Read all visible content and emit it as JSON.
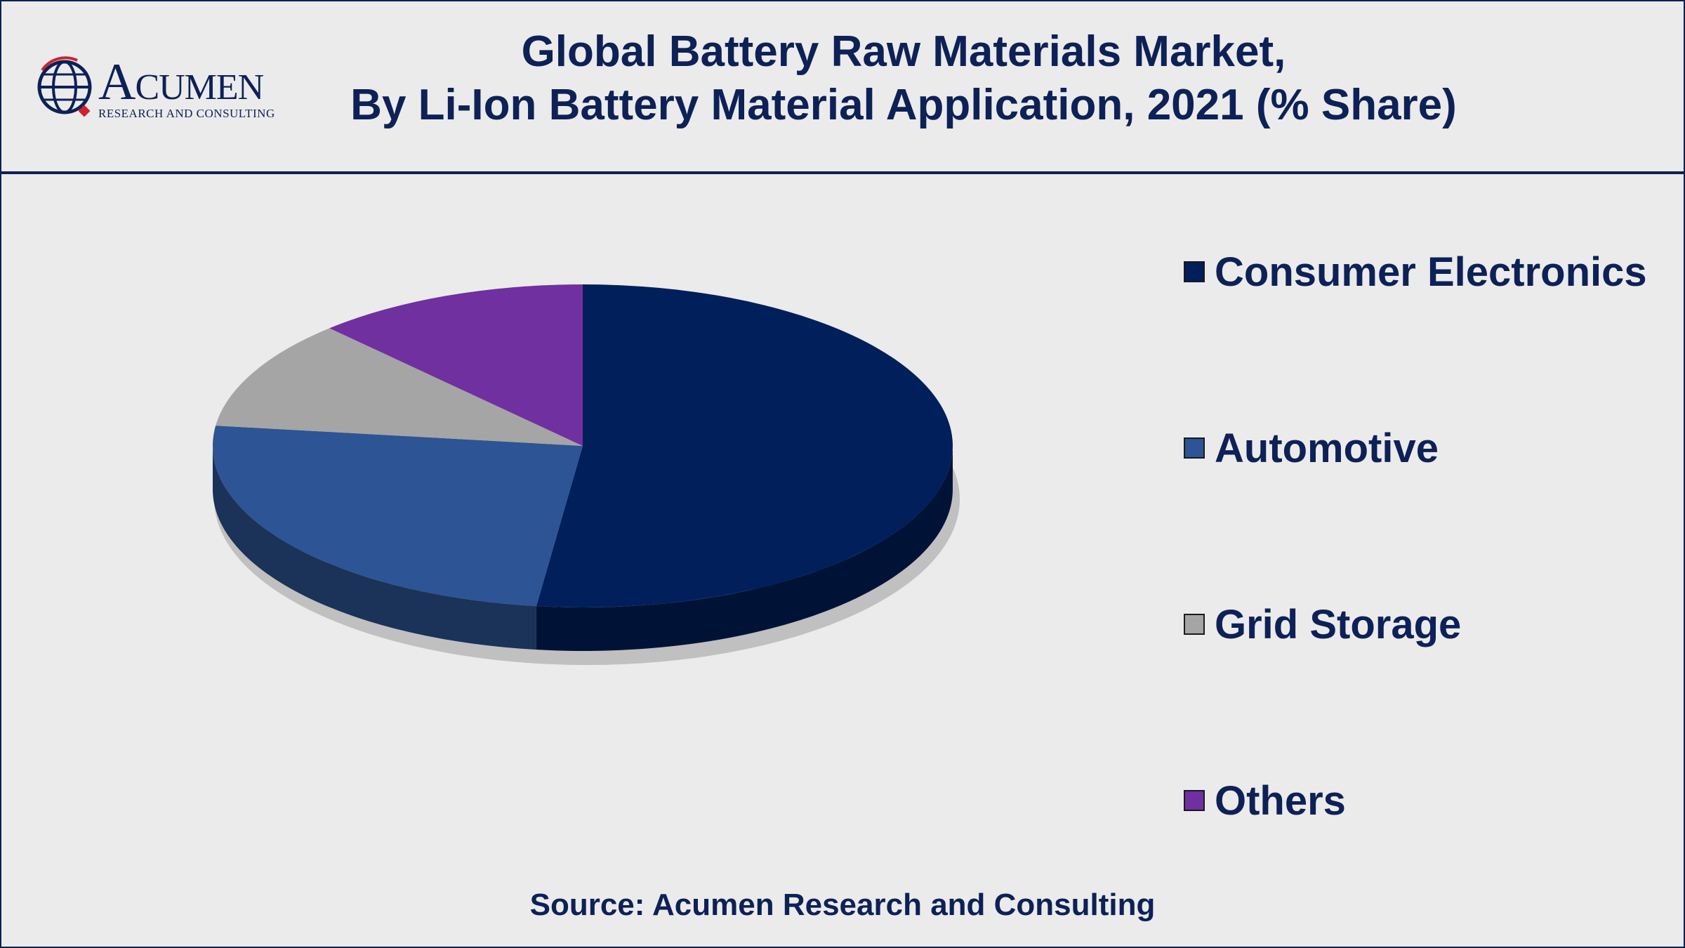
{
  "header": {
    "logo_name": "Acumen",
    "logo_tagline": "RESEARCH AND CONSULTING",
    "title_line1": "Global Battery Raw Materials Market,",
    "title_line2": "By Li-Ion Battery Material Application, 2021 (% Share)"
  },
  "chart_data": {
    "type": "pie",
    "style": "3d",
    "categories": [
      "Consumer Electronics",
      "Automotive",
      "Grid Storage",
      "Others"
    ],
    "values": [
      52,
      25,
      11,
      12
    ],
    "unit": "% Share",
    "colors": [
      "#001f5b",
      "#2d5494",
      "#a5a5a5",
      "#7030a0"
    ],
    "legend_position": "right"
  },
  "footer": {
    "source": "Source: Acumen Research and Consulting"
  }
}
